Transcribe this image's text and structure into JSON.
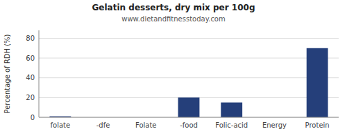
{
  "chart_data": {
    "type": "bar",
    "title": "Gelatin desserts, dry mix per 100g",
    "subtitle": "www.dietandfitnesstoday.com",
    "ylabel": "Percentage of RDH (%)",
    "categories": [
      "folate",
      "-dfe",
      "Folate",
      "-food",
      "Folic-acid",
      "Energy",
      "Protein"
    ],
    "values": [
      1,
      0,
      0,
      20,
      15,
      0,
      70
    ],
    "color": "#253f7a",
    "ylim": [
      0,
      88
    ],
    "yticks": [
      0,
      20,
      40,
      60,
      80
    ],
    "grid": true
  }
}
